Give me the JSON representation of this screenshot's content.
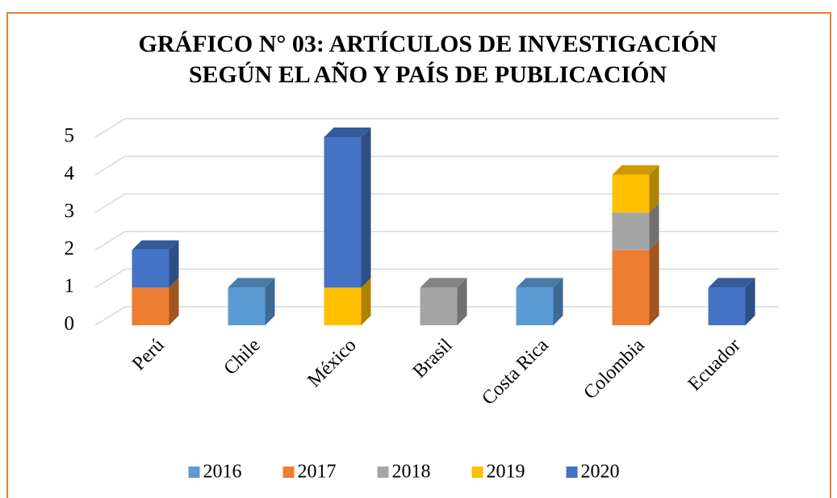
{
  "chart_data": {
    "type": "bar3d_stacked",
    "title": [
      "GRÁFICO N° 03: ARTÍCULOS DE INVESTIGACIÓN",
      "SEGÚN EL AÑO Y PAÍS DE PUBLICACIÓN"
    ],
    "categories": [
      "Perú",
      "Chile",
      "México",
      "Brasil",
      "Costa Rica",
      "Colombia",
      "Ecuador"
    ],
    "series": [
      {
        "name": "2016",
        "color": "#5b9bd5",
        "values": [
          0,
          1,
          0,
          0,
          1,
          0,
          0
        ]
      },
      {
        "name": "2017",
        "color": "#ed7d31",
        "values": [
          1,
          0,
          0,
          0,
          0,
          2,
          0
        ]
      },
      {
        "name": "2018",
        "color": "#a5a5a5",
        "values": [
          0,
          0,
          0,
          1,
          0,
          1,
          0
        ]
      },
      {
        "name": "2019",
        "color": "#ffc000",
        "values": [
          0,
          0,
          1,
          0,
          0,
          1,
          0
        ]
      },
      {
        "name": "2020",
        "color": "#4472c4",
        "values": [
          1,
          0,
          4,
          0,
          0,
          0,
          1
        ]
      }
    ],
    "ylim": [
      0,
      5
    ],
    "yticks": [
      0,
      1,
      2,
      3,
      4,
      5
    ],
    "grid": true,
    "legend": "bottom"
  }
}
